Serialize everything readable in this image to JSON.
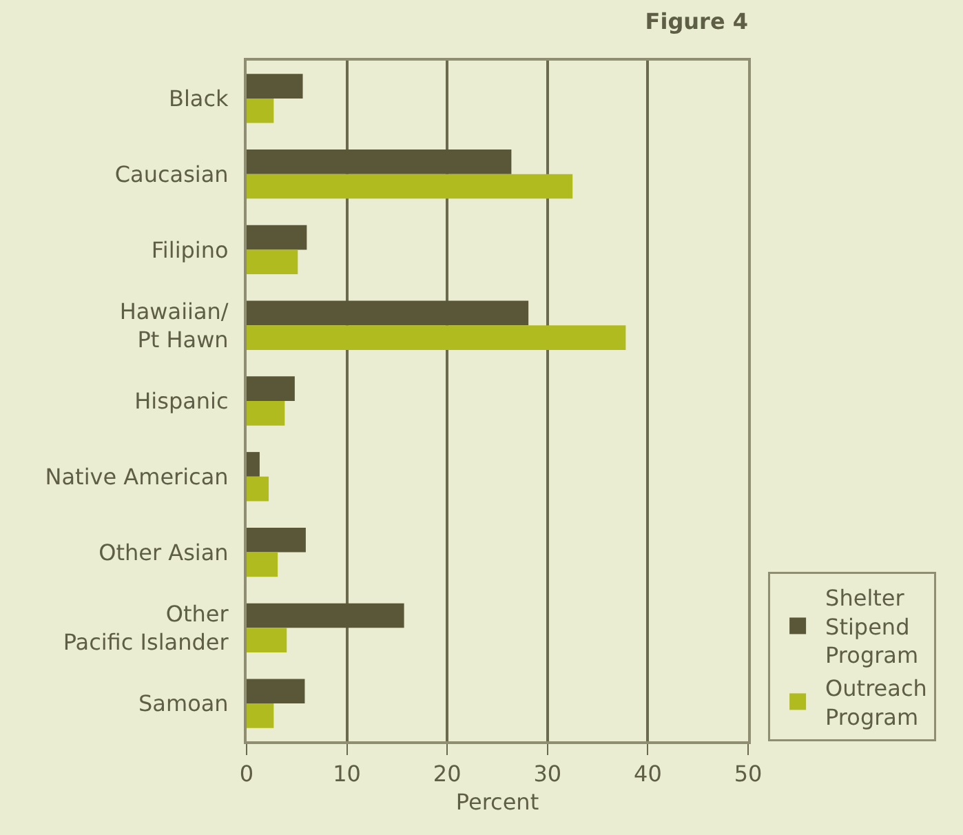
{
  "chart_data": {
    "type": "bar",
    "orientation": "horizontal",
    "title": "Figure 4",
    "xlabel": "Percent",
    "categories": [
      "Black",
      "Caucasian",
      "Filipino",
      "Hawaiian/ Pt Hawn",
      "Hispanic",
      "Native American",
      "Other Asian",
      "Other Pacific Islander",
      "Samoan"
    ],
    "series": [
      {
        "name": "Shelter Stipend Program",
        "color": "#5a5638",
        "values": [
          5.6,
          26.4,
          6.0,
          28.1,
          4.8,
          1.3,
          5.9,
          15.7,
          5.8
        ]
      },
      {
        "name": "Outreach Program",
        "color": "#b0bb20",
        "values": [
          2.7,
          32.5,
          5.1,
          37.8,
          3.8,
          2.2,
          3.1,
          4.0,
          2.7
        ]
      }
    ],
    "xlim": [
      0,
      50
    ],
    "xticks": [
      0,
      10,
      20,
      30,
      40,
      50
    ],
    "grid": "x",
    "legend": "bottom right"
  }
}
